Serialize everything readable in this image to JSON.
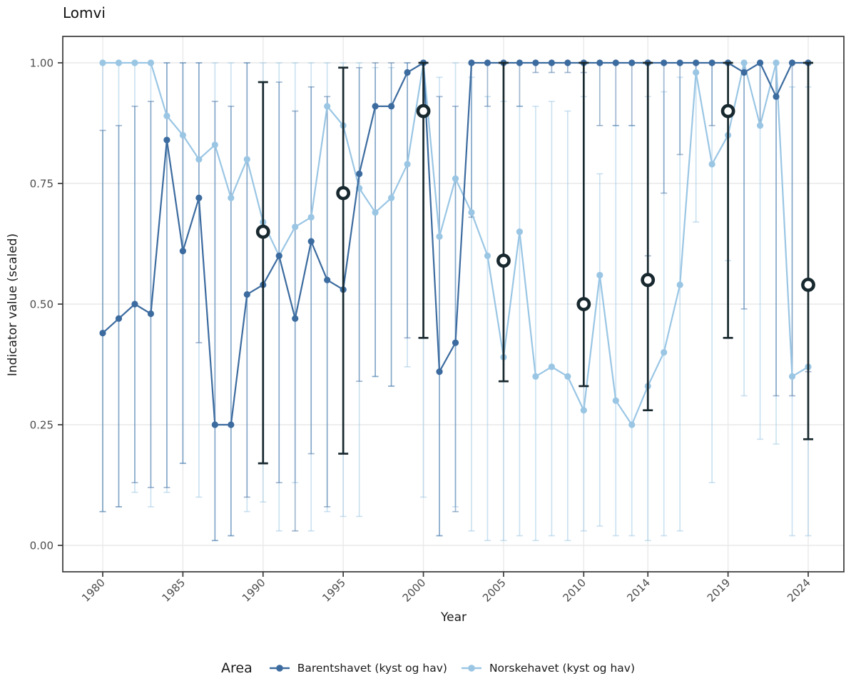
{
  "title": "Lomvi",
  "axes": {
    "x_label": "Year",
    "y_label": "Indicator value (scaled)"
  },
  "legend": {
    "title": "Area",
    "items": [
      {
        "label": "Barentshavet (kyst og hav)",
        "color": "#3c6b9f"
      },
      {
        "label": "Norskehavet (kyst og hav)",
        "color": "#9ac6e4"
      }
    ]
  },
  "colors": {
    "background": "#ffffff",
    "panel_border": "#383838",
    "grid": "#e9e9e9",
    "tick": "#383838",
    "axis_text": "#4d4d4d",
    "assessment": "#17282e"
  },
  "chart_data": {
    "type": "line",
    "title": "Lomvi",
    "xlabel": "Year",
    "ylabel": "Indicator value (scaled)",
    "x_min": 1980,
    "x_max": 2024,
    "ylim": [
      0.0,
      1.0
    ],
    "grid": true,
    "legend_position": "bottom",
    "x_ticks": [
      1980,
      1985,
      1990,
      1995,
      2000,
      2005,
      2010,
      2014,
      2019,
      2024
    ],
    "y_ticks": [
      {
        "v": 0.0,
        "label": "0.00"
      },
      {
        "v": 0.25,
        "label": "0.25"
      },
      {
        "v": 0.5,
        "label": "0.50"
      },
      {
        "v": 0.75,
        "label": "0.75"
      },
      {
        "v": 1.0,
        "label": "1.00"
      }
    ],
    "years": [
      1980,
      1981,
      1982,
      1983,
      1984,
      1985,
      1986,
      1987,
      1988,
      1989,
      1990,
      1991,
      1992,
      1993,
      1994,
      1995,
      1996,
      1997,
      1998,
      1999,
      2000,
      2001,
      2002,
      2003,
      2004,
      2005,
      2006,
      2007,
      2008,
      2009,
      2010,
      2011,
      2012,
      2013,
      2014,
      2015,
      2016,
      2017,
      2018,
      2019,
      2020,
      2021,
      2022,
      2023,
      2024
    ],
    "series": [
      {
        "name": "Norskehavet (kyst og hav)",
        "color": "#9ac6e4",
        "values": [
          1.0,
          1.0,
          1.0,
          1.0,
          0.89,
          0.85,
          0.8,
          0.83,
          0.72,
          0.8,
          0.67,
          0.6,
          0.66,
          0.68,
          0.91,
          0.87,
          0.74,
          0.69,
          0.72,
          0.79,
          1.0,
          0.64,
          0.76,
          0.69,
          0.6,
          0.39,
          0.65,
          0.35,
          0.37,
          0.35,
          0.28,
          0.56,
          0.3,
          0.25,
          0.33,
          0.4,
          0.54,
          0.98,
          0.79,
          0.85,
          1.0,
          0.87,
          1.0,
          0.35,
          0.37
        ],
        "ci_low": [
          0.07,
          0.08,
          0.11,
          0.08,
          0.11,
          0.17,
          0.1,
          0.01,
          0.02,
          0.07,
          0.09,
          0.03,
          0.13,
          0.03,
          0.07,
          0.06,
          0.06,
          0.35,
          0.33,
          0.37,
          0.1,
          0.02,
          0.08,
          0.03,
          0.01,
          0.01,
          0.02,
          0.01,
          0.02,
          0.01,
          0.03,
          0.04,
          0.02,
          0.02,
          0.01,
          0.02,
          0.03,
          0.67,
          0.13,
          0.59,
          0.31,
          0.22,
          0.21,
          0.02,
          0.02
        ],
        "ci_high": [
          1.0,
          1.0,
          1.0,
          1.0,
          1.0,
          1.0,
          1.0,
          1.0,
          1.0,
          1.0,
          1.0,
          1.0,
          1.0,
          1.0,
          1.0,
          1.0,
          1.0,
          0.99,
          0.99,
          1.0,
          1.0,
          0.97,
          1.0,
          0.97,
          0.93,
          0.92,
          0.91,
          0.91,
          0.92,
          0.9,
          0.93,
          0.77,
          0.87,
          0.87,
          0.93,
          0.94,
          0.97,
          1.0,
          1.0,
          1.0,
          1.0,
          1.0,
          1.0,
          0.95,
          0.95
        ]
      },
      {
        "name": "Barentshavet (kyst og hav)",
        "color": "#3c6b9f",
        "values": [
          0.44,
          0.47,
          0.5,
          0.48,
          0.84,
          0.61,
          0.72,
          0.25,
          0.25,
          0.52,
          0.54,
          0.6,
          0.47,
          0.63,
          0.55,
          0.53,
          0.77,
          0.91,
          0.91,
          0.98,
          1.0,
          0.36,
          0.42,
          1.0,
          1.0,
          1.0,
          1.0,
          1.0,
          1.0,
          1.0,
          1.0,
          1.0,
          1.0,
          1.0,
          1.0,
          1.0,
          1.0,
          1.0,
          1.0,
          1.0,
          0.98,
          1.0,
          0.93,
          1.0,
          1.0
        ],
        "ci_low": [
          0.07,
          0.08,
          0.13,
          0.12,
          0.12,
          0.17,
          0.42,
          0.01,
          0.02,
          0.1,
          0.17,
          0.13,
          0.03,
          0.19,
          0.08,
          0.19,
          0.34,
          0.35,
          0.33,
          0.43,
          0.43,
          0.02,
          0.07,
          0.68,
          0.91,
          0.34,
          0.91,
          0.98,
          0.98,
          0.98,
          0.98,
          0.87,
          0.87,
          0.87,
          0.6,
          0.73,
          0.81,
          0.98,
          0.87,
          0.43,
          0.49,
          0.87,
          0.31,
          0.31,
          0.36
        ],
        "ci_high": [
          0.86,
          0.87,
          0.91,
          0.92,
          1.0,
          1.0,
          1.0,
          0.92,
          0.91,
          1.0,
          0.96,
          0.96,
          0.9,
          0.95,
          0.93,
          0.99,
          0.99,
          1.0,
          1.0,
          1.0,
          1.0,
          0.93,
          0.91,
          1.0,
          1.0,
          1.0,
          1.0,
          1.0,
          1.0,
          1.0,
          1.0,
          1.0,
          1.0,
          1.0,
          1.0,
          1.0,
          1.0,
          1.0,
          1.0,
          1.0,
          1.0,
          1.0,
          1.0,
          1.0,
          1.0
        ]
      }
    ],
    "assessment_points": {
      "name": "assessment-values",
      "color": "#17282e",
      "years": [
        1990,
        1995,
        2000,
        2005,
        2010,
        2014,
        2019,
        2024
      ],
      "values": [
        0.65,
        0.73,
        0.9,
        0.59,
        0.5,
        0.55,
        0.9,
        0.54
      ],
      "ci_low": [
        0.17,
        0.19,
        0.43,
        0.34,
        0.33,
        0.28,
        0.43,
        0.22
      ],
      "ci_high": [
        0.96,
        0.99,
        1.0,
        1.0,
        1.0,
        1.0,
        1.0,
        1.0
      ]
    }
  }
}
